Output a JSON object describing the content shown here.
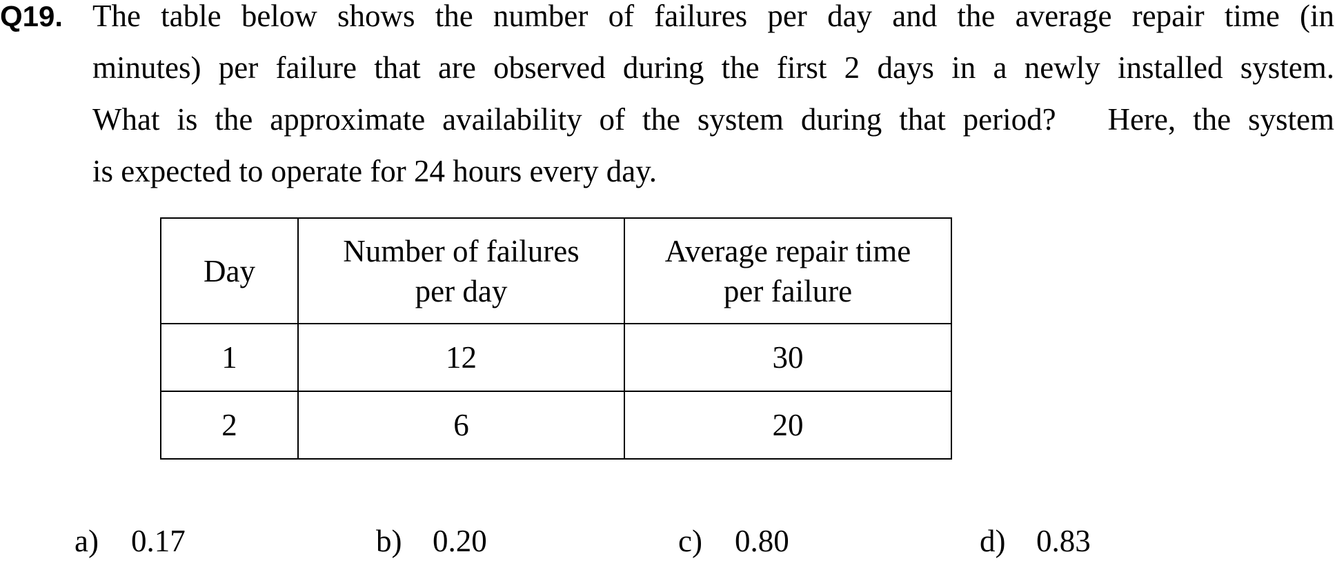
{
  "question": {
    "label": "Q19.",
    "lines": [
      "The table below shows the number of failures per day and the average repair time (in",
      "minutes) per failure that are observed during the first 2 days in a newly installed system.",
      "What is the approximate availability of the system during that period?   Here, the system",
      "is expected to operate for 24 hours every day."
    ]
  },
  "table": {
    "headers": [
      "Day",
      "Number of failures per day",
      "Average repair time per failure"
    ],
    "header_lines": [
      [
        "Day"
      ],
      [
        "Number of failures",
        "per day"
      ],
      [
        "Average repair time",
        "per failure"
      ]
    ],
    "rows": [
      [
        "1",
        "12",
        "30"
      ],
      [
        "2",
        "6",
        "20"
      ]
    ]
  },
  "choices": [
    {
      "label": "a)",
      "value": "0.17"
    },
    {
      "label": "b)",
      "value": "0.20"
    },
    {
      "label": "c)",
      "value": "0.80"
    },
    {
      "label": "d)",
      "value": "0.83"
    }
  ]
}
